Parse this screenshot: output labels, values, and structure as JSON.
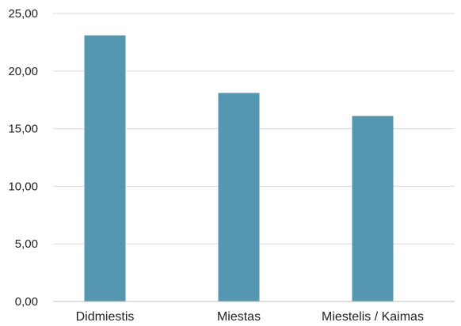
{
  "chart_data": {
    "type": "bar",
    "categories": [
      "Didmiestis",
      "Miestas",
      "Miestelis / Kaimas"
    ],
    "values": [
      23.1,
      18.1,
      16.1
    ],
    "ylim": [
      0,
      25
    ],
    "yticks": [
      "0,00",
      "5,00",
      "10,00",
      "15,00",
      "20,00",
      "25,00"
    ],
    "grid": true,
    "legend": "none",
    "colors": {
      "bar": "#5597b0"
    }
  }
}
